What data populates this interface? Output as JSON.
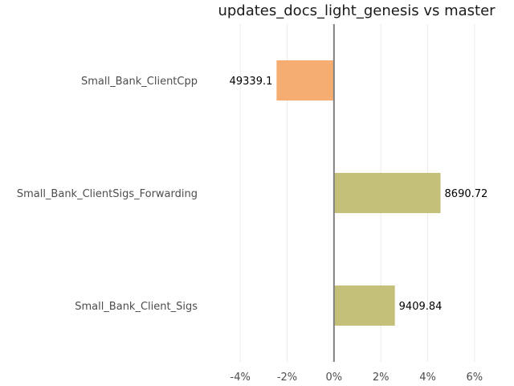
{
  "chart_data": {
    "type": "bar",
    "orientation": "horizontal",
    "title": "updates_docs_light_genesis vs master",
    "xlabel": "",
    "ylabel": "",
    "xlim": [
      -5,
      7
    ],
    "xticks": [
      -4,
      -2,
      0,
      2,
      4,
      6
    ],
    "tick_suffix": "%",
    "grid": "vertical",
    "categories": [
      "Small_Bank_ClientCpp",
      "Small_Bank_ClientSigs_Forwarding",
      "Small_Bank_Client_Sigs"
    ],
    "values": [
      -2.45,
      4.55,
      2.6
    ],
    "labels": [
      "49339.1",
      "8690.72",
      "9409.84"
    ],
    "colors": [
      "#f5ad71",
      "#c4c07a",
      "#c4c07a"
    ]
  }
}
